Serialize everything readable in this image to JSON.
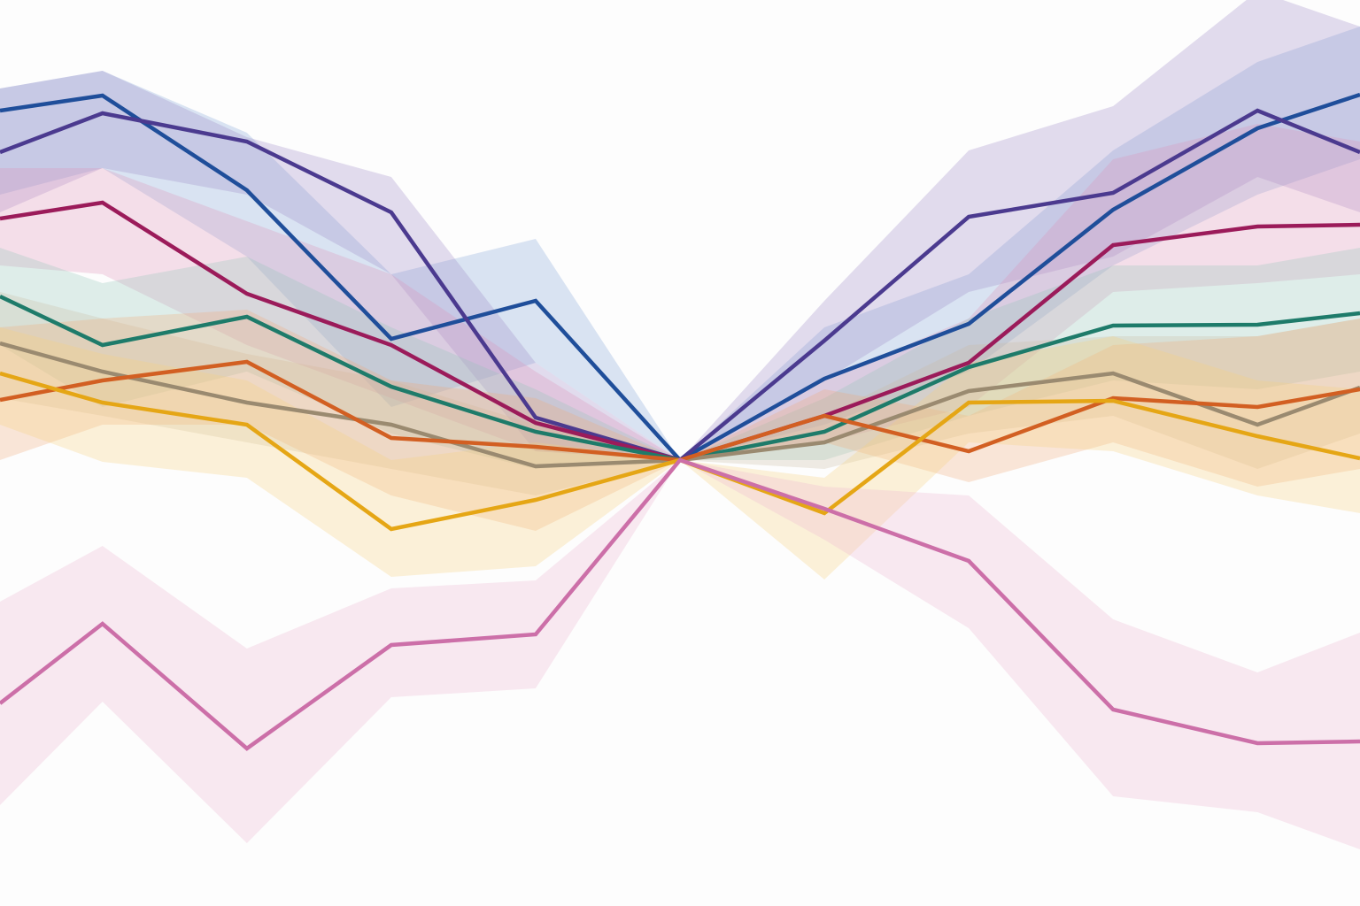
{
  "chart_data": {
    "type": "line",
    "title": "",
    "xlabel": "",
    "ylabel": "",
    "grid": false,
    "legend": "none",
    "xlim": [
      -4.71,
      4.71
    ],
    "ylim": [
      -5.04,
      5.2
    ],
    "x": [
      -4.71,
      -4,
      -3,
      -2,
      -1,
      0,
      1,
      2,
      3,
      4,
      4.71
    ],
    "series": [
      {
        "color": "#1f4e9a",
        "band_color": "#7fa3d6",
        "values": [
          3.95,
          4.12,
          3.05,
          1.37,
          1.8,
          0,
          0.92,
          1.54,
          2.83,
          3.75,
          4.13
        ],
        "upper": [
          4.2,
          4.4,
          3.7,
          2.1,
          2.5,
          0,
          1.5,
          2.1,
          3.5,
          4.5,
          4.9
        ],
        "lower": [
          3.0,
          3.3,
          2.3,
          0.6,
          1.1,
          0,
          0.4,
          1.0,
          2.2,
          3.0,
          3.4
        ]
      },
      {
        "color": "#4b3a8f",
        "band_color": "#9a86c6",
        "values": [
          3.48,
          3.92,
          3.6,
          2.8,
          0.48,
          0,
          1.35,
          2.75,
          3.02,
          3.95,
          3.48
        ],
        "upper": [
          4.2,
          4.4,
          3.65,
          3.2,
          1.1,
          0,
          1.8,
          3.5,
          4.0,
          5.3,
          4.9
        ],
        "lower": [
          2.8,
          3.3,
          3.0,
          2.1,
          0.1,
          0,
          0.9,
          1.9,
          2.3,
          3.2,
          2.8
        ]
      },
      {
        "color": "#9b1b5a",
        "band_color": "#e08fb8",
        "values": [
          2.73,
          2.91,
          1.88,
          1.3,
          0.42,
          0,
          0.5,
          1.1,
          2.43,
          2.64,
          2.66
        ],
        "upper": [
          3.3,
          3.3,
          2.7,
          2.1,
          1.0,
          0,
          0.9,
          1.6,
          3.4,
          3.8,
          3.6
        ],
        "lower": [
          2.2,
          2.1,
          1.3,
          0.7,
          0.1,
          0,
          0.2,
          0.6,
          1.9,
          2.0,
          2.1
        ]
      },
      {
        "color": "#1e7b6a",
        "band_color": "#8fc4b6",
        "values": [
          1.85,
          1.3,
          1.62,
          0.83,
          0.32,
          0,
          0.32,
          1.05,
          1.52,
          1.53,
          1.66
        ],
        "upper": [
          2.4,
          2.0,
          2.3,
          1.5,
          0.8,
          0,
          0.7,
          1.6,
          2.2,
          2.2,
          2.4
        ],
        "lower": [
          1.3,
          0.6,
          1.0,
          0.3,
          -0.1,
          0,
          0.0,
          0.5,
          0.9,
          0.8,
          1.0
        ]
      },
      {
        "color": "#9a8a70",
        "band_color": "#c9bba0",
        "values": [
          1.32,
          1.0,
          0.65,
          0.4,
          -0.07,
          0,
          0.2,
          0.78,
          0.98,
          0.4,
          0.82
        ],
        "upper": [
          1.9,
          1.6,
          1.2,
          0.9,
          0.4,
          0,
          0.5,
          1.3,
          1.4,
          1.4,
          1.6
        ],
        "lower": [
          0.7,
          0.5,
          0.2,
          -0.1,
          -0.4,
          0,
          -0.1,
          0.3,
          0.5,
          -0.1,
          0.3
        ]
      },
      {
        "color": "#d25f22",
        "band_color": "#f2a878",
        "values": [
          0.68,
          0.9,
          1.11,
          0.25,
          0.15,
          0,
          0.5,
          0.1,
          0.7,
          0.6,
          0.8
        ],
        "upper": [
          1.5,
          1.6,
          1.7,
          0.9,
          0.7,
          0,
          0.8,
          0.5,
          1.3,
          1.4,
          1.6
        ],
        "lower": [
          0,
          0.4,
          0.4,
          -0.4,
          -0.8,
          0,
          0.2,
          -0.25,
          0.2,
          -0.3,
          -0.1
        ]
      },
      {
        "color": "#e5a615",
        "band_color": "#f7cf7a",
        "values": [
          0.98,
          0.65,
          0.4,
          -0.78,
          -0.45,
          0,
          -0.6,
          0.65,
          0.67,
          0.27,
          0.02
        ],
        "upper": [
          1.5,
          1.2,
          0.9,
          0.0,
          0.2,
          0,
          -0.2,
          1.1,
          1.4,
          0.9,
          0.8
        ],
        "lower": [
          0.4,
          -0.02,
          -0.2,
          -1.32,
          -1.2,
          0,
          -1.35,
          0.2,
          0.1,
          -0.4,
          -0.6
        ]
      },
      {
        "color": "#cc6fa8",
        "band_color": "#eeb3d2",
        "values": [
          -2.75,
          -1.85,
          -3.26,
          -2.09,
          -1.97,
          0,
          -0.55,
          -1.14,
          -2.82,
          -3.2,
          -3.18
        ],
        "upper": [
          -1.6,
          -0.97,
          -2.13,
          -1.45,
          -1.36,
          0,
          -0.3,
          -0.4,
          -1.8,
          -2.4,
          -1.95
        ],
        "lower": [
          -3.9,
          -2.73,
          -4.33,
          -2.68,
          -2.58,
          0,
          -0.9,
          -1.9,
          -3.8,
          -3.98,
          -4.4
        ]
      }
    ]
  }
}
